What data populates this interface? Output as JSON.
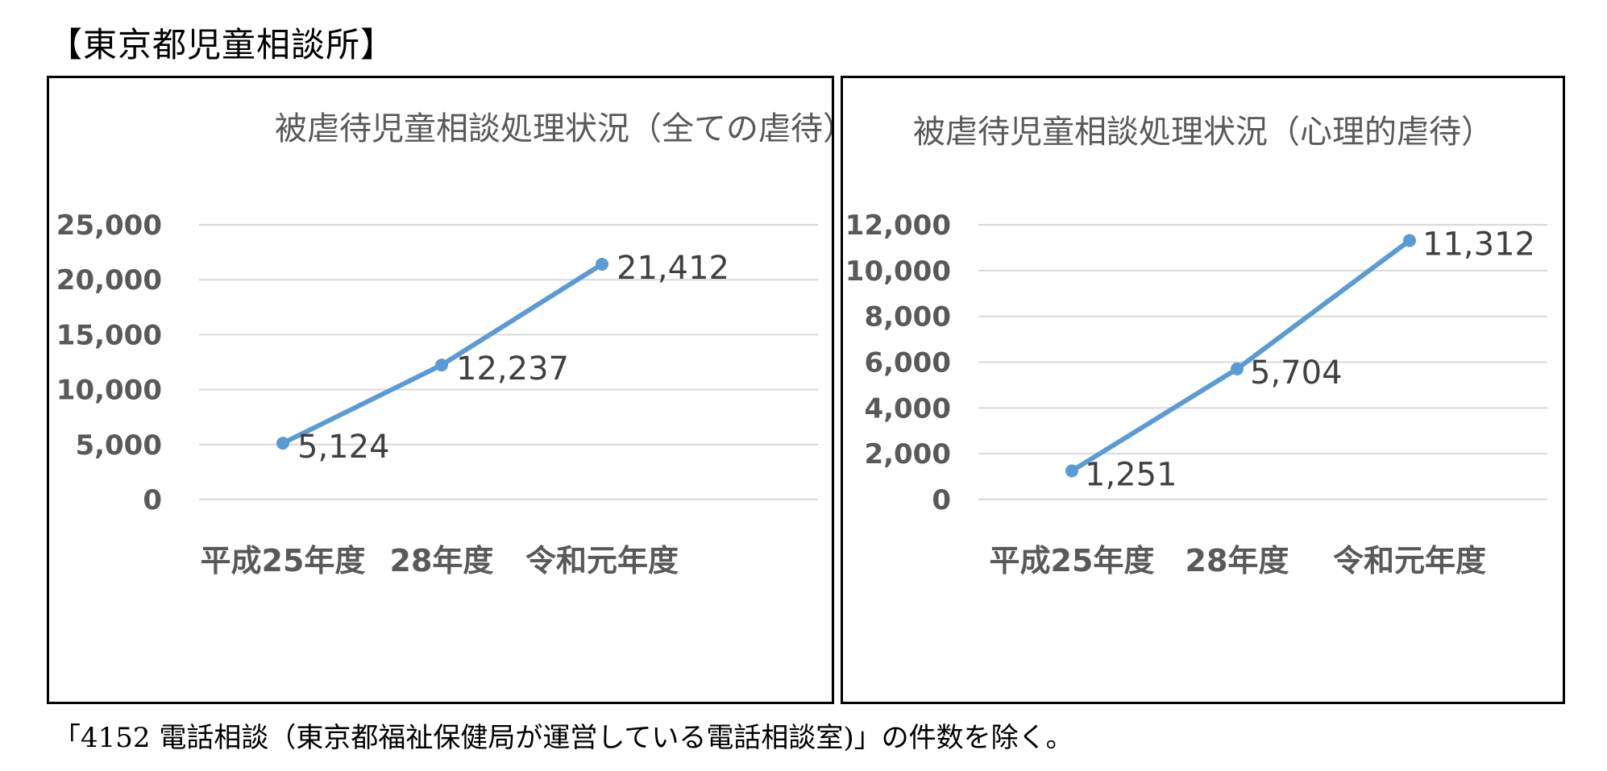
{
  "heading": "【東京都児童相談所】",
  "footnote": "「4152 電話相談（東京都福祉保健局が運営している電話相談室)」の件数を除く。",
  "style": {
    "line_color": "#5b9bd5",
    "grid_color": "#d9d9d9",
    "text_color": "#595959"
  },
  "chart_data": [
    {
      "type": "line",
      "title": "被虐待児童相談処理状況（全ての虐待）",
      "categories": [
        "平成25年度",
        "28年度",
        "令和元年度"
      ],
      "values": [
        5124,
        12237,
        21412
      ],
      "data_labels": [
        "5,124",
        "12,237",
        "21,412"
      ],
      "ylim": [
        0,
        25000
      ],
      "y_ticks": [
        "0",
        "5,000",
        "10,000",
        "15,000",
        "20,000",
        "25,000"
      ],
      "grid": true,
      "xlabel": "",
      "ylabel": ""
    },
    {
      "type": "line",
      "title": "被虐待児童相談処理状況（心理的虐待）",
      "categories": [
        "平成25年度",
        "28年度",
        "令和元年度"
      ],
      "values": [
        1251,
        5704,
        11312
      ],
      "data_labels": [
        "1,251",
        "5,704",
        "11,312"
      ],
      "ylim": [
        0,
        12000
      ],
      "y_ticks": [
        "0",
        "2,000",
        "4,000",
        "6,000",
        "8,000",
        "10,000",
        "12,000"
      ],
      "grid": true,
      "xlabel": "",
      "ylabel": ""
    }
  ]
}
